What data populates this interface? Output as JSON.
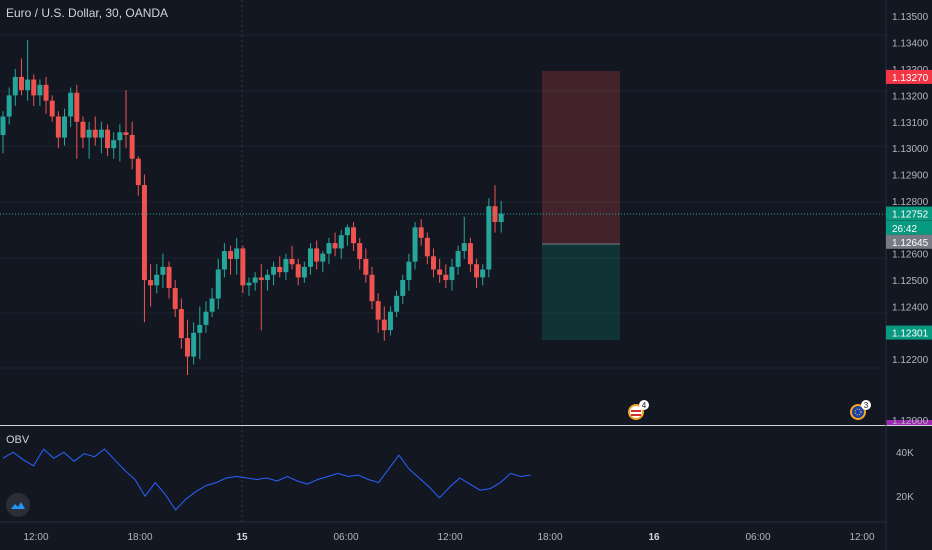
{
  "header": {
    "title": "Euro / U.S. Dollar, 30, OANDA"
  },
  "indicator": {
    "label": "OBV",
    "y_ticks": [
      "40K",
      "20K"
    ]
  },
  "price_axis": {
    "ticks": [
      "1.13500",
      "1.13400",
      "1.13300",
      "1.13200",
      "1.13100",
      "1.13000",
      "1.12900",
      "1.12800",
      "1.12600",
      "1.12500",
      "1.12400",
      "1.12200"
    ],
    "tags": [
      {
        "text": "1.13270",
        "value": 1.1327,
        "color": "#f23645"
      },
      {
        "text": "1.12752",
        "value": 1.12752,
        "color": "#089981"
      },
      {
        "text": "26:42",
        "value": 1.12698,
        "color": "#089981"
      },
      {
        "text": "1.12645",
        "value": 1.12645,
        "color": "#787b86"
      },
      {
        "text": "1.12301",
        "value": 1.12301,
        "color": "#089981"
      }
    ],
    "partial_bottom_label": "1.12000",
    "countdown_prefix": "1"
  },
  "time_axis": {
    "ticks": [
      "12:00",
      "18:00",
      "15",
      "06:00",
      "12:00",
      "18:00",
      "16",
      "06:00",
      "12:00"
    ]
  },
  "events": [
    {
      "label": "4",
      "icon": "us-flag-icon"
    },
    {
      "label": "3",
      "icon": "eu-flag-icon"
    }
  ],
  "colors": {
    "up": "#26a69a",
    "down": "#ef5350",
    "obv_line": "#2962ff",
    "bg": "#131722"
  },
  "chart_data": {
    "type": "candlestick",
    "title": "Euro / U.S. Dollar, 30, OANDA",
    "ylim": [
      1.12125,
      1.13535
    ],
    "position": {
      "entry": 1.12645,
      "stop": 1.1327,
      "target": 1.12301
    },
    "current_price": 1.12752,
    "candles": [
      [
        1.1305,
        1.1314,
        1.1298,
        1.1312
      ],
      [
        1.1312,
        1.1323,
        1.1309,
        1.132
      ],
      [
        1.132,
        1.133,
        1.1316,
        1.1327
      ],
      [
        1.1327,
        1.1334,
        1.132,
        1.1322
      ],
      [
        1.1322,
        1.1341,
        1.1318,
        1.1326
      ],
      [
        1.1326,
        1.1328,
        1.1316,
        1.132
      ],
      [
        1.132,
        1.1326,
        1.1316,
        1.1324
      ],
      [
        1.1324,
        1.1327,
        1.1313,
        1.1318
      ],
      [
        1.1318,
        1.132,
        1.131,
        1.1312
      ],
      [
        1.1312,
        1.1314,
        1.13,
        1.1304
      ],
      [
        1.1304,
        1.1315,
        1.1301,
        1.1312
      ],
      [
        1.1312,
        1.1323,
        1.1308,
        1.1321
      ],
      [
        1.1321,
        1.1324,
        1.1296,
        1.131
      ],
      [
        1.131,
        1.1312,
        1.13,
        1.1304
      ],
      [
        1.1304,
        1.131,
        1.1296,
        1.1307
      ],
      [
        1.1307,
        1.1312,
        1.1301,
        1.1304
      ],
      [
        1.1304,
        1.131,
        1.1298,
        1.1307
      ],
      [
        1.1307,
        1.1309,
        1.1297,
        1.13
      ],
      [
        1.13,
        1.1306,
        1.1296,
        1.1303
      ],
      [
        1.1303,
        1.1309,
        1.1295,
        1.1306
      ],
      [
        1.1306,
        1.1322,
        1.13,
        1.1305
      ],
      [
        1.1305,
        1.131,
        1.1292,
        1.1296
      ],
      [
        1.1296,
        1.1297,
        1.1282,
        1.1286
      ],
      [
        1.1286,
        1.129,
        1.1234,
        1.125
      ],
      [
        1.125,
        1.1256,
        1.124,
        1.1248
      ],
      [
        1.1248,
        1.1256,
        1.1245,
        1.1252
      ],
      [
        1.1252,
        1.126,
        1.1247,
        1.1255
      ],
      [
        1.1255,
        1.1257,
        1.1243,
        1.1247
      ],
      [
        1.1247,
        1.125,
        1.1236,
        1.1239
      ],
      [
        1.1239,
        1.1243,
        1.1224,
        1.1228
      ],
      [
        1.1228,
        1.1235,
        1.1214,
        1.1221
      ],
      [
        1.1221,
        1.1234,
        1.1218,
        1.123
      ],
      [
        1.123,
        1.124,
        1.122,
        1.1233
      ],
      [
        1.1233,
        1.1242,
        1.123,
        1.1238
      ],
      [
        1.1238,
        1.1247,
        1.1236,
        1.1243
      ],
      [
        1.1243,
        1.1258,
        1.1239,
        1.1254
      ],
      [
        1.1254,
        1.1264,
        1.1251,
        1.1261
      ],
      [
        1.1261,
        1.1263,
        1.1252,
        1.1258
      ],
      [
        1.1258,
        1.1266,
        1.1252,
        1.1262
      ],
      [
        1.1262,
        1.1263,
        1.1245,
        1.1248
      ],
      [
        1.1248,
        1.1251,
        1.1244,
        1.1249
      ],
      [
        1.1249,
        1.1253,
        1.1246,
        1.1251
      ],
      [
        1.1251,
        1.1256,
        1.1231,
        1.125
      ],
      [
        1.125,
        1.1254,
        1.1246,
        1.1252
      ],
      [
        1.1252,
        1.1257,
        1.1248,
        1.1255
      ],
      [
        1.1255,
        1.1259,
        1.1251,
        1.1253
      ],
      [
        1.1253,
        1.126,
        1.125,
        1.1258
      ],
      [
        1.1258,
        1.1263,
        1.1254,
        1.1256
      ],
      [
        1.1256,
        1.1258,
        1.1248,
        1.1251
      ],
      [
        1.1251,
        1.1257,
        1.1249,
        1.1255
      ],
      [
        1.1255,
        1.1264,
        1.1252,
        1.1262
      ],
      [
        1.1262,
        1.1265,
        1.1254,
        1.1257
      ],
      [
        1.1257,
        1.1261,
        1.1253,
        1.126
      ],
      [
        1.126,
        1.1266,
        1.1256,
        1.1264
      ],
      [
        1.1264,
        1.1268,
        1.1259,
        1.1262
      ],
      [
        1.1262,
        1.1269,
        1.1258,
        1.1267
      ],
      [
        1.1267,
        1.1271,
        1.1263,
        1.127
      ],
      [
        1.127,
        1.1272,
        1.1261,
        1.1264
      ],
      [
        1.1264,
        1.1266,
        1.1254,
        1.1258
      ],
      [
        1.1258,
        1.1262,
        1.1249,
        1.1252
      ],
      [
        1.1252,
        1.1255,
        1.1239,
        1.1242
      ],
      [
        1.1242,
        1.1245,
        1.123,
        1.1235
      ],
      [
        1.1235,
        1.124,
        1.1227,
        1.1231
      ],
      [
        1.1231,
        1.124,
        1.1229,
        1.1238
      ],
      [
        1.1238,
        1.1246,
        1.1236,
        1.1244
      ],
      [
        1.1244,
        1.1252,
        1.1241,
        1.125
      ],
      [
        1.125,
        1.126,
        1.1246,
        1.1257
      ],
      [
        1.1257,
        1.1272,
        1.1254,
        1.127
      ],
      [
        1.127,
        1.1273,
        1.1263,
        1.1266
      ],
      [
        1.1266,
        1.1268,
        1.1256,
        1.1259
      ],
      [
        1.1259,
        1.1262,
        1.1251,
        1.1254
      ],
      [
        1.1254,
        1.1258,
        1.1249,
        1.1252
      ],
      [
        1.1252,
        1.1256,
        1.1247,
        1.125
      ],
      [
        1.125,
        1.1258,
        1.1246,
        1.1255
      ],
      [
        1.1255,
        1.1263,
        1.1252,
        1.1261
      ],
      [
        1.1261,
        1.1274,
        1.1258,
        1.1264
      ],
      [
        1.1264,
        1.1266,
        1.1253,
        1.1256
      ],
      [
        1.1256,
        1.1258,
        1.1247,
        1.1251
      ],
      [
        1.1251,
        1.1256,
        1.1248,
        1.1254
      ],
      [
        1.1254,
        1.1281,
        1.1251,
        1.1278
      ],
      [
        1.1278,
        1.1286,
        1.1268,
        1.1272
      ],
      [
        1.1272,
        1.128,
        1.1268,
        1.12752
      ]
    ],
    "obv": {
      "values": [
        38,
        42,
        37,
        33,
        44,
        38,
        42,
        36,
        41,
        39,
        44,
        37,
        30,
        24,
        13,
        22,
        14,
        4,
        11,
        16,
        20,
        22,
        25,
        26,
        25,
        24,
        25,
        23,
        26,
        23,
        21,
        24,
        26,
        28,
        26,
        27,
        24,
        22,
        31,
        40,
        31,
        25,
        19,
        12,
        19,
        25,
        21,
        17,
        18,
        22,
        28,
        26,
        27
      ],
      "ylim": [
        0,
        50
      ]
    }
  }
}
